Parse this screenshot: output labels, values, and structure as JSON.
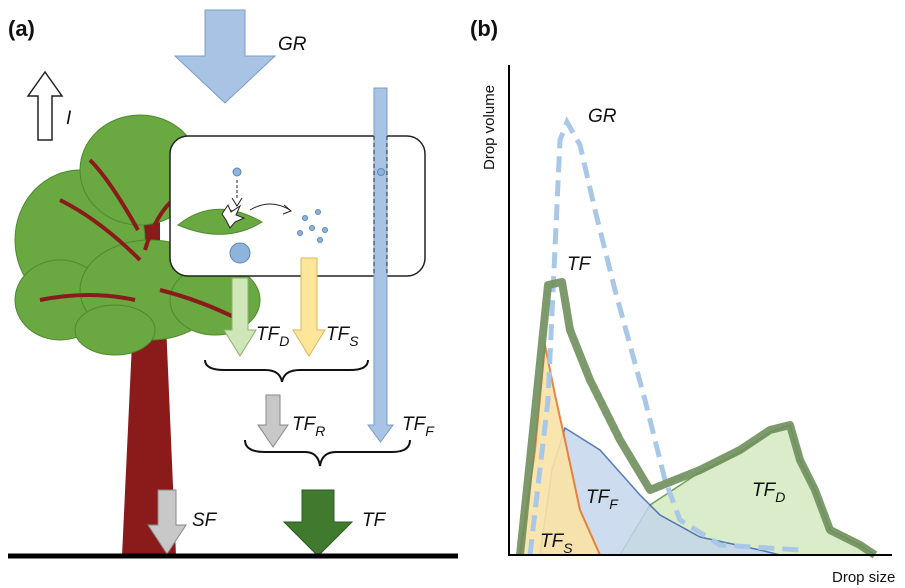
{
  "panel_a": {
    "label": "(a)",
    "gr": "GR",
    "i": "I",
    "tf_d": {
      "main": "TF",
      "sub": "D"
    },
    "tf_s": {
      "main": "TF",
      "sub": "S"
    },
    "tf_r": {
      "main": "TF",
      "sub": "R"
    },
    "tf_f": {
      "main": "TF",
      "sub": "F"
    },
    "sf": "SF",
    "tf": "TF"
  },
  "panel_b": {
    "label": "(b)",
    "y_axis": "Drop volume",
    "x_axis": "Drop size",
    "curves": {
      "gr": "GR",
      "tf": "TF",
      "tf_f": {
        "main": "TF",
        "sub": "F"
      },
      "tf_d": {
        "main": "TF",
        "sub": "D"
      },
      "tf_s": {
        "main": "TF",
        "sub": "S"
      }
    }
  }
}
